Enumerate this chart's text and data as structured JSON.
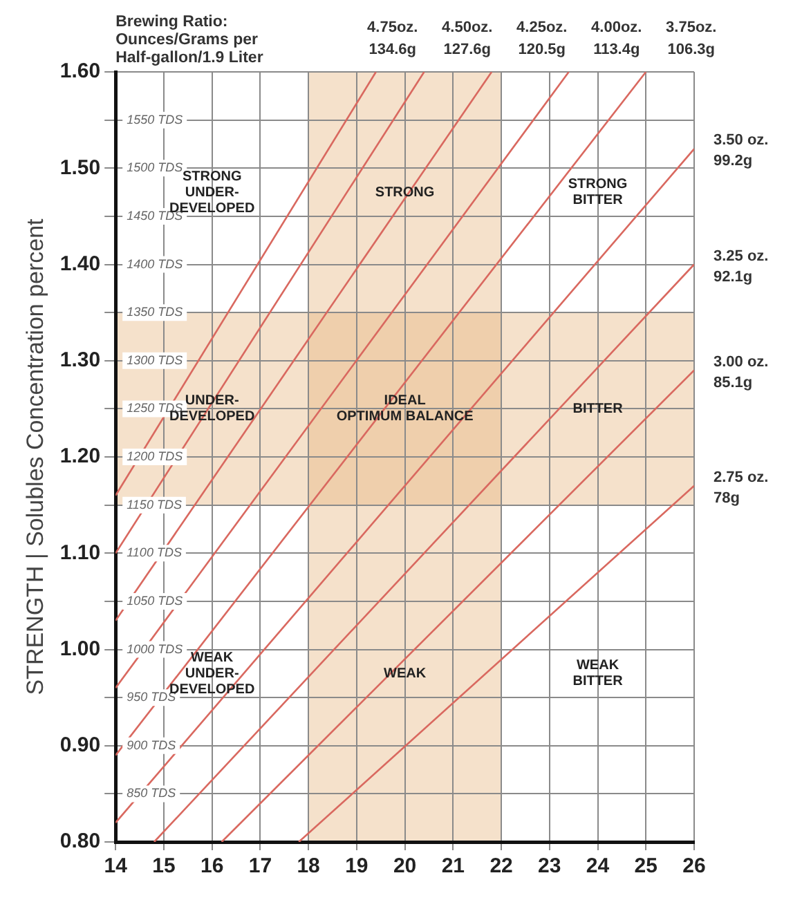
{
  "chart_data": {
    "type": "line",
    "ylabel": "STRENGTH | Solubles Concentration percent",
    "legend_title": "Brewing Ratio:\nOunces/Grams per\nHalf-gallon/1.9 Liter",
    "xlim": [
      14,
      26
    ],
    "xticks": [
      14,
      15,
      16,
      17,
      18,
      19,
      20,
      21,
      22,
      23,
      24,
      25,
      26
    ],
    "ylim": [
      0.8,
      1.6
    ],
    "yticks": [
      {
        "value": 0.8,
        "label": "0.80"
      },
      {
        "value": 0.85,
        "label": null
      },
      {
        "value": 0.9,
        "label": "0.90"
      },
      {
        "value": 0.95,
        "label": null
      },
      {
        "value": 1.0,
        "label": "1.00"
      },
      {
        "value": 1.05,
        "label": null
      },
      {
        "value": 1.1,
        "label": "1.10"
      },
      {
        "value": 1.15,
        "label": null
      },
      {
        "value": 1.2,
        "label": "1.20"
      },
      {
        "value": 1.25,
        "label": null
      },
      {
        "value": 1.3,
        "label": "1.30"
      },
      {
        "value": 1.35,
        "label": null
      },
      {
        "value": 1.4,
        "label": "1.40"
      },
      {
        "value": 1.45,
        "label": null
      },
      {
        "value": 1.5,
        "label": "1.50"
      },
      {
        "value": 1.55,
        "label": null
      },
      {
        "value": 1.6,
        "label": "1.60"
      }
    ],
    "y2lim": [
      800,
      1600
    ],
    "y2ticks": [
      {
        "value": 850,
        "label": "850 TDS"
      },
      {
        "value": 900,
        "label": "900 TDS"
      },
      {
        "value": 950,
        "label": "950 TDS"
      },
      {
        "value": 1000,
        "label": "1000 TDS"
      },
      {
        "value": 1050,
        "label": "1050 TDS"
      },
      {
        "value": 1100,
        "label": "1100 TDS"
      },
      {
        "value": 1150,
        "label": "1150 TDS"
      },
      {
        "value": 1200,
        "label": "1200 TDS"
      },
      {
        "value": 1250,
        "label": "1250 TDS"
      },
      {
        "value": 1300,
        "label": "1300 TDS"
      },
      {
        "value": 1350,
        "label": "1350 TDS"
      },
      {
        "value": 1400,
        "label": "1400 TDS"
      },
      {
        "value": 1450,
        "label": "1450 TDS"
      },
      {
        "value": 1500,
        "label": "1500 TDS"
      },
      {
        "value": 1550,
        "label": "1550 TDS"
      }
    ],
    "grid": true,
    "marker": "none",
    "line_style": "solid",
    "bands": [
      {
        "axis": "x",
        "from": 18,
        "to": 22,
        "color": "#e6b47c"
      },
      {
        "axis": "y",
        "from": 1.15,
        "to": 1.35,
        "color": "#e6b47c"
      }
    ],
    "series": [
      {
        "name": "4.75oz. 134.6g",
        "color": "#d9685f",
        "x": [
          14,
          19.4
        ],
        "values": [
          1.16,
          1.6
        ]
      },
      {
        "name": "4.50oz. 127.6g",
        "color": "#d9685f",
        "x": [
          14,
          20.4
        ],
        "values": [
          1.1,
          1.6
        ]
      },
      {
        "name": "4.25oz. 120.5g",
        "color": "#d9685f",
        "x": [
          14,
          21.8
        ],
        "values": [
          1.03,
          1.6
        ]
      },
      {
        "name": "4.00oz. 113.4g",
        "color": "#d9685f",
        "x": [
          14,
          23.4
        ],
        "values": [
          0.96,
          1.6
        ]
      },
      {
        "name": "3.75oz. 106.3g",
        "color": "#d9685f",
        "x": [
          14,
          25.0
        ],
        "values": [
          0.89,
          1.6
        ]
      },
      {
        "name": "3.50 oz. 99.2g",
        "color": "#d9685f",
        "x": [
          14,
          26
        ],
        "values": [
          0.82,
          1.52
        ]
      },
      {
        "name": "3.25 oz. 92.1g",
        "color": "#d9685f",
        "x": [
          14.8,
          26
        ],
        "values": [
          0.8,
          1.4
        ]
      },
      {
        "name": "3.00 oz. 85.1g",
        "color": "#d9685f",
        "x": [
          16.2,
          26
        ],
        "values": [
          0.8,
          1.29
        ]
      },
      {
        "name": "2.75 oz. 78g",
        "color": "#d9685f",
        "x": [
          17.8,
          26
        ],
        "values": [
          0.8,
          1.17
        ]
      }
    ],
    "annotations": [
      "STRONG\nUNDER-\nDEVELOPED",
      "STRONG",
      "STRONG\nBITTER",
      "UNDER-\nDEVELOPED",
      "IDEAL\nOPTIMUM BALANCE",
      "BITTER",
      "WEAK\nUNDER-\nDEVELOPED",
      "WEAK",
      "WEAK\nBITTER"
    ]
  }
}
